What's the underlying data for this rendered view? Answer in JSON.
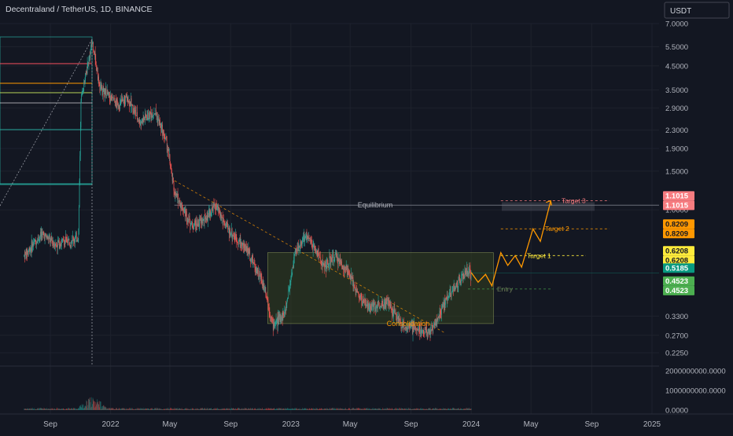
{
  "header": {
    "title": "Decentraland / TetherUS, 1D, BINANCE",
    "currency_button": "USDT"
  },
  "annotations": {
    "equilibrium": "Equilibrium",
    "consolidation": "Consolidation",
    "entry": "Entry",
    "target1": "Target 1",
    "target2": "Target 2",
    "target3": "Target 3"
  },
  "price_badges": [
    {
      "label": "1.1015",
      "color": "#f77c80",
      "price": 1.1015,
      "slot": 0
    },
    {
      "label": "1.1015",
      "color": "#f77c80",
      "price": 1.1015,
      "slot": 1
    },
    {
      "label": "0.8209",
      "color": "#ff9800",
      "price": 0.8209,
      "slot": 0
    },
    {
      "label": "0.8209",
      "color": "#ff9800",
      "price": 0.8209,
      "slot": 1
    },
    {
      "label": "0.6208",
      "color": "#ffeb3b",
      "price": 0.6208,
      "slot": 0
    },
    {
      "label": "0.6208",
      "color": "#ffeb3b",
      "price": 0.6208,
      "slot": 1
    },
    {
      "label": "0.5185",
      "color": "#089981",
      "price": 0.5185,
      "slot": 0
    },
    {
      "label": "0.4523",
      "color": "#4caf50",
      "price": 0.4523,
      "slot": 0
    },
    {
      "label": "0.4523",
      "color": "#4caf50",
      "price": 0.4523,
      "slot": 1
    }
  ],
  "chart_data": {
    "type": "candlestick",
    "title": "Decentraland / TetherUS, 1D, BINANCE",
    "y_scale": "log",
    "y_ticks": [
      "7.0000",
      "5.5000",
      "4.5000",
      "3.5000",
      "2.9000",
      "2.3000",
      "1.9000",
      "1.5000",
      "1.0000",
      "0.3300",
      "0.2700",
      "0.2250"
    ],
    "y_tick_values": [
      7.0,
      5.5,
      4.5,
      3.5,
      2.9,
      2.3,
      1.9,
      1.5,
      1.0,
      0.33,
      0.27,
      0.225
    ],
    "x_ticks": [
      "Sep",
      "2022",
      "May",
      "Sep",
      "2023",
      "May",
      "Sep",
      "2024",
      "May",
      "Sep",
      "2025"
    ],
    "x_tick_dates": [
      "2021-09-01",
      "2022-01-01",
      "2022-05-01",
      "2022-09-01",
      "2023-01-01",
      "2023-05-01",
      "2023-09-01",
      "2024-01-01",
      "2024-05-01",
      "2024-09-01",
      "2025-01-01"
    ],
    "volume_ticks": [
      "2000000000.0000",
      "1000000000.0000",
      "0.0000"
    ],
    "volume_tick_values": [
      2000000000,
      1000000000,
      0
    ],
    "price_path": [
      {
        "date": "2021-07-10",
        "price": 0.62
      },
      {
        "date": "2021-08-15",
        "price": 0.78
      },
      {
        "date": "2021-09-10",
        "price": 0.7
      },
      {
        "date": "2021-10-28",
        "price": 0.75
      },
      {
        "date": "2021-11-02",
        "price": 3.2
      },
      {
        "date": "2021-11-25",
        "price": 5.8
      },
      {
        "date": "2021-12-10",
        "price": 3.6
      },
      {
        "date": "2022-01-15",
        "price": 3.0
      },
      {
        "date": "2022-02-05",
        "price": 3.2
      },
      {
        "date": "2022-03-01",
        "price": 2.5
      },
      {
        "date": "2022-04-01",
        "price": 2.8
      },
      {
        "date": "2022-04-25",
        "price": 2.0
      },
      {
        "date": "2022-05-10",
        "price": 1.2
      },
      {
        "date": "2022-06-15",
        "price": 0.85
      },
      {
        "date": "2022-07-10",
        "price": 0.9
      },
      {
        "date": "2022-08-01",
        "price": 1.05
      },
      {
        "date": "2022-08-25",
        "price": 0.82
      },
      {
        "date": "2022-10-05",
        "price": 0.66
      },
      {
        "date": "2022-11-10",
        "price": 0.44
      },
      {
        "date": "2022-11-25",
        "price": 0.3
      },
      {
        "date": "2022-12-20",
        "price": 0.34
      },
      {
        "date": "2023-01-10",
        "price": 0.65
      },
      {
        "date": "2023-02-01",
        "price": 0.76
      },
      {
        "date": "2023-02-20",
        "price": 0.66
      },
      {
        "date": "2023-03-10",
        "price": 0.55
      },
      {
        "date": "2023-04-01",
        "price": 0.62
      },
      {
        "date": "2023-05-01",
        "price": 0.5
      },
      {
        "date": "2023-05-20",
        "price": 0.4
      },
      {
        "date": "2023-06-10",
        "price": 0.36
      },
      {
        "date": "2023-07-15",
        "price": 0.38
      },
      {
        "date": "2023-08-15",
        "price": 0.3
      },
      {
        "date": "2023-09-10",
        "price": 0.29
      },
      {
        "date": "2023-10-10",
        "price": 0.28
      },
      {
        "date": "2023-10-25",
        "price": 0.32
      },
      {
        "date": "2023-11-15",
        "price": 0.41
      },
      {
        "date": "2023-12-05",
        "price": 0.46
      },
      {
        "date": "2023-12-20",
        "price": 0.52
      },
      {
        "date": "2024-01-01",
        "price": 0.5185
      }
    ],
    "projection_path": [
      {
        "date": "2024-01-01",
        "price": 0.52
      },
      {
        "date": "2024-01-15",
        "price": 0.47
      },
      {
        "date": "2024-01-30",
        "price": 0.51
      },
      {
        "date": "2024-02-12",
        "price": 0.4523
      },
      {
        "date": "2024-03-01",
        "price": 0.64
      },
      {
        "date": "2024-03-15",
        "price": 0.56
      },
      {
        "date": "2024-03-30",
        "price": 0.62
      },
      {
        "date": "2024-04-12",
        "price": 0.55
      },
      {
        "date": "2024-05-05",
        "price": 0.82
      },
      {
        "date": "2024-05-20",
        "price": 0.72
      },
      {
        "date": "2024-06-10",
        "price": 1.1
      }
    ],
    "consolidation_zone": {
      "start": "2022-11-15",
      "end": "2024-02-15",
      "low": 0.305,
      "high": 0.64
    },
    "equilibrium_level": 1.0,
    "target_levels": [
      {
        "name": "Target 1",
        "price": 0.6208
      },
      {
        "name": "Target 2",
        "price": 0.8209
      },
      {
        "name": "Target 3",
        "price": 1.1015
      }
    ],
    "entry_level": 0.4523,
    "current_price": 0.5185
  }
}
